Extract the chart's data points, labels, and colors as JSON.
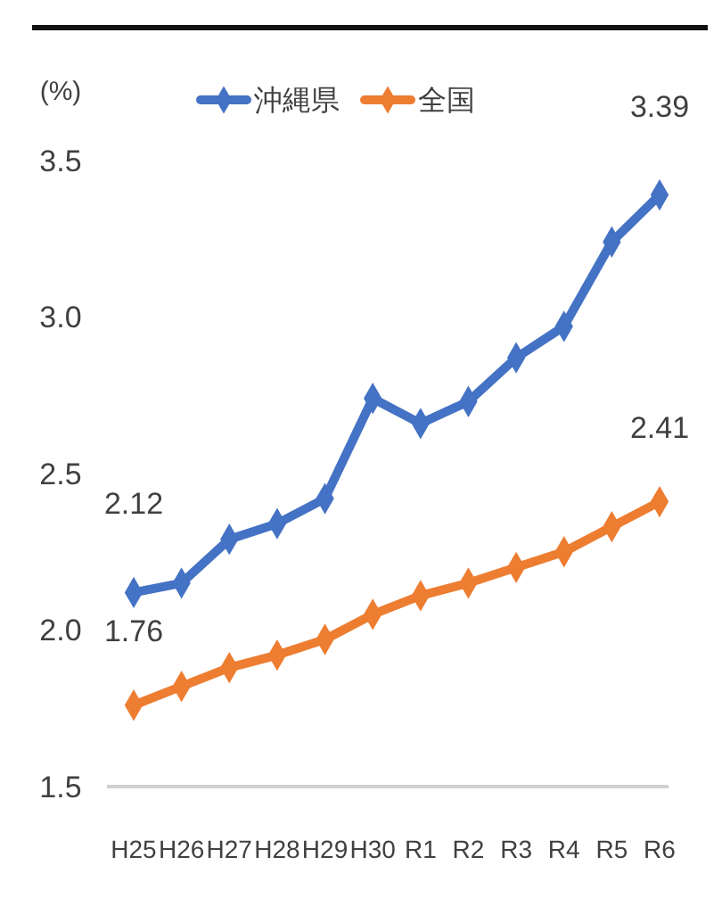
{
  "chart_data": {
    "type": "line",
    "ylabel": "(%)",
    "categories": [
      "H25",
      "H26",
      "H27",
      "H28",
      "H29",
      "H30",
      "R1",
      "R2",
      "R3",
      "R4",
      "R5",
      "R6"
    ],
    "series": [
      {
        "name": "沖縄県",
        "color": "#4472c4",
        "values": [
          2.12,
          2.15,
          2.29,
          2.34,
          2.42,
          2.74,
          2.66,
          2.73,
          2.87,
          2.97,
          3.24,
          3.39
        ],
        "value_labels": [
          "2.12",
          null,
          null,
          null,
          null,
          null,
          null,
          null,
          null,
          null,
          null,
          "3.39"
        ]
      },
      {
        "name": "全国",
        "color": "#ed7d31",
        "values": [
          1.76,
          1.82,
          1.88,
          1.92,
          1.97,
          2.05,
          2.11,
          2.15,
          2.2,
          2.25,
          2.33,
          2.41
        ],
        "value_labels": [
          "1.76",
          null,
          null,
          null,
          null,
          null,
          null,
          null,
          null,
          null,
          null,
          "2.41"
        ]
      }
    ],
    "ylim": [
      1.5,
      3.5
    ],
    "yticks": [
      {
        "value": 1.5,
        "label": "1.5"
      },
      {
        "value": 2,
        "label": "2.0"
      },
      {
        "value": 2.5,
        "label": "2.5"
      },
      {
        "value": 3,
        "label": "3.0"
      },
      {
        "value": 3.5,
        "label": "3.5"
      }
    ],
    "grid": false,
    "legend": "top",
    "marker": "diamond",
    "line_style": "solid"
  }
}
